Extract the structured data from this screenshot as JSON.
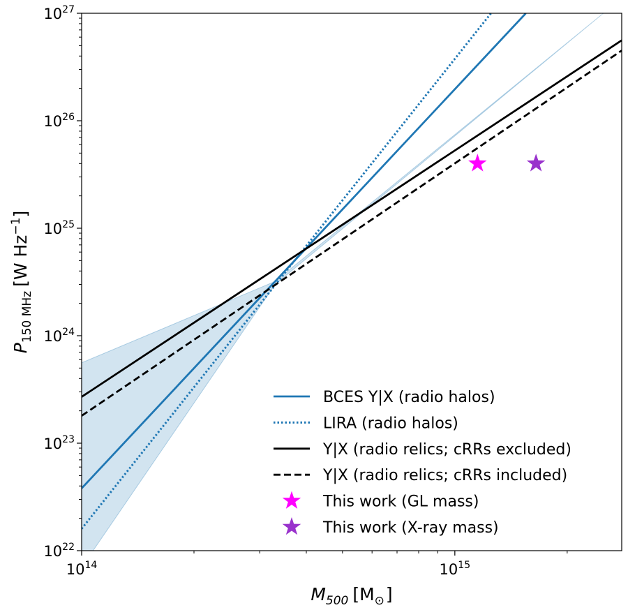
{
  "chart_data": {
    "type": "line",
    "xscale": "log",
    "yscale": "log",
    "xlim": [
      100000000000000.0,
      2800000000000000.0
    ],
    "ylim": [
      1e+22,
      1e+27
    ],
    "xlabel": {
      "main": "M",
      "sub": "500",
      "unit_open": "[M",
      "unit_sub": "⊙",
      "unit_close": "]"
    },
    "ylabel": {
      "main": "P",
      "sub": "150 MHz",
      "unit_open": "[W Hz",
      "unit_sup": "−1",
      "unit_close": "]"
    },
    "x_ticks": [
      {
        "value": 100000000000000.0,
        "base": "10",
        "exp": "14"
      },
      {
        "value": 1000000000000000.0,
        "base": "10",
        "exp": "15"
      }
    ],
    "y_ticks": [
      {
        "value": 1e+22,
        "base": "10",
        "exp": "22"
      },
      {
        "value": 1e+23,
        "base": "10",
        "exp": "23"
      },
      {
        "value": 1e+24,
        "base": "10",
        "exp": "24"
      },
      {
        "value": 1e+25,
        "base": "10",
        "exp": "25"
      },
      {
        "value": 1e+26,
        "base": "10",
        "exp": "26"
      },
      {
        "value": 1e+27,
        "base": "10",
        "exp": "27"
      }
    ],
    "band": {
      "name": "BCES uncertainty",
      "color": "#1f77b4",
      "opacity": 0.2,
      "x": [
        100000000000000.0,
        330000000000000.0,
        2500000000000000.0
      ],
      "lower": [
        7e+21,
        3e+24,
        1e+27
      ],
      "upper": [
        5.6e+23,
        3.2e+24,
        1e+27
      ]
    },
    "series": [
      {
        "name": "BCES Y|X (radio halos)",
        "style": "solid",
        "color": "#1f77b4",
        "x": [
          100000000000000.0,
          1550000000000000.0
        ],
        "y": [
          3.8e+22,
          1e+27
        ]
      },
      {
        "name": "LIRA (radio halos)",
        "style": "dotted",
        "color": "#1f77b4",
        "x": [
          100000000000000.0,
          1250000000000000.0
        ],
        "y": [
          1.6e+22,
          1e+27
        ]
      },
      {
        "name": "Y|X (radio relics; cRRs excluded)",
        "style": "solid",
        "color": "#000000",
        "x": [
          100000000000000.0,
          2800000000000000.0
        ],
        "y": [
          2.7e+23,
          5.6e+26
        ]
      },
      {
        "name": "Y|X (radio relics; cRRs included)",
        "style": "dashed",
        "color": "#000000",
        "x": [
          100000000000000.0,
          2800000000000000.0
        ],
        "y": [
          1.8e+23,
          4.5e+26
        ]
      }
    ],
    "points": [
      {
        "name": "This work (GL mass)",
        "marker": "star",
        "color": "#ff00ff",
        "x": 1150000000000000.0,
        "y": 4e+25
      },
      {
        "name": "This work (X-ray mass)",
        "marker": "star",
        "color": "#9932cc",
        "x": 1650000000000000.0,
        "y": 4e+25
      }
    ],
    "legend": {
      "position": "lower-right",
      "entries": [
        "BCES Y|X (radio halos)",
        "LIRA (radio halos)",
        "Y|X (radio relics; cRRs excluded)",
        "Y|X (radio relics; cRRs included)",
        "This work (GL mass)",
        "This work (X-ray mass)"
      ]
    }
  }
}
